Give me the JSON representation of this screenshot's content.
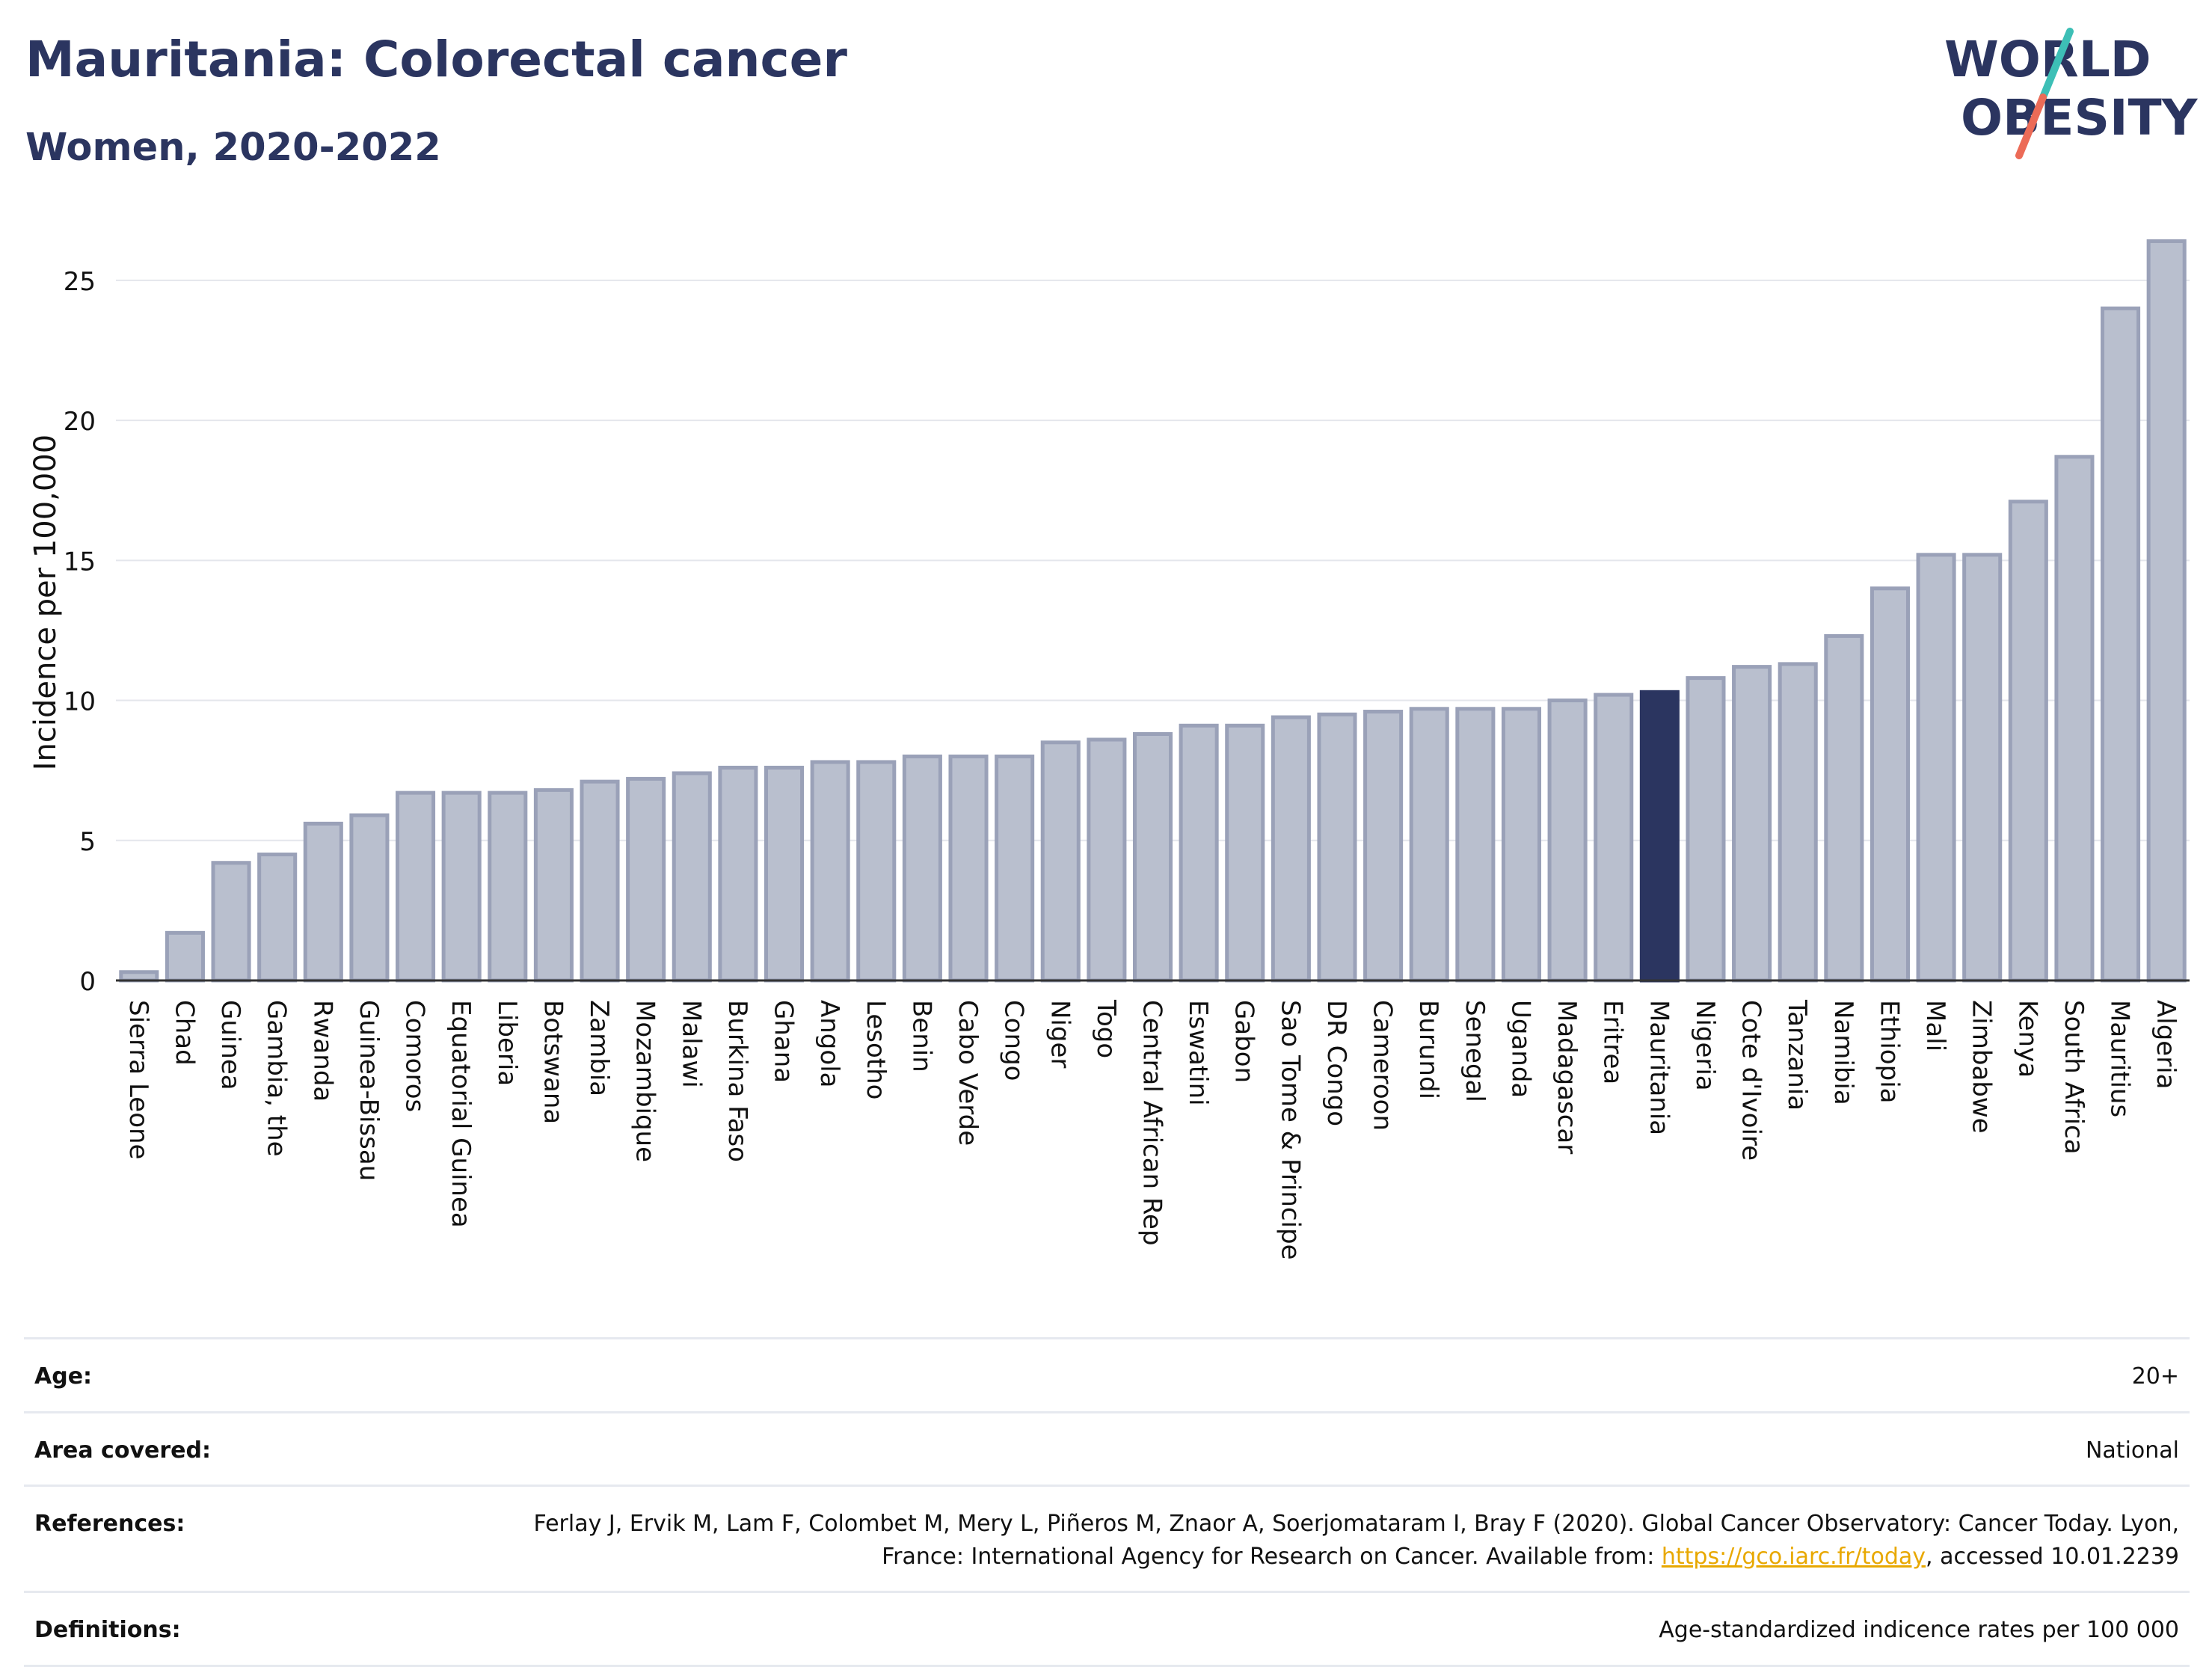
{
  "header": {
    "title": "Mauritania: Colorectal cancer",
    "subtitle": "Women, 2020-2022",
    "logo_line1": "WORLD",
    "logo_line2": "OBESITY"
  },
  "colors": {
    "bar": "#b9bfce",
    "bar_outline": "#9aa1b8",
    "highlight": "#2b3560",
    "title": "#2b3560",
    "link": "#e8a800",
    "logo_teal": "#3dbfb6",
    "logo_red": "#ec6b57"
  },
  "chart_data": {
    "type": "bar",
    "ylabel": "Incidence per 100,000",
    "ylim": [
      0,
      27
    ],
    "yticks": [
      0,
      5,
      10,
      15,
      20,
      25
    ],
    "grid": true,
    "highlight_category": "Mauritania",
    "categories": [
      "Sierra Leone",
      "Chad",
      "Guinea",
      "Gambia, the",
      "Rwanda",
      "Guinea-Bissau",
      "Comoros",
      "Equatorial Guinea",
      "Liberia",
      "Botswana",
      "Zambia",
      "Mozambique",
      "Malawi",
      "Burkina Faso",
      "Ghana",
      "Angola",
      "Lesotho",
      "Benin",
      "Cabo Verde",
      "Congo",
      "Niger",
      "Togo",
      "Central African Rep",
      "Eswatini",
      "Gabon",
      "Sao Tome & Principe",
      "DR Congo",
      "Cameroon",
      "Burundi",
      "Senegal",
      "Uganda",
      "Madagascar",
      "Eritrea",
      "Mauritania",
      "Nigeria",
      "Cote d'Ivoire",
      "Tanzania",
      "Namibia",
      "Ethiopia",
      "Mali",
      "Zimbabwe",
      "Kenya",
      "South Africa",
      "Mauritius",
      "Algeria"
    ],
    "values": [
      0.3,
      1.7,
      4.2,
      4.5,
      5.6,
      5.9,
      6.7,
      6.7,
      6.7,
      6.8,
      7.1,
      7.2,
      7.4,
      7.6,
      7.6,
      7.8,
      7.8,
      8.0,
      8.0,
      8.0,
      8.5,
      8.6,
      8.8,
      9.1,
      9.1,
      9.4,
      9.5,
      9.6,
      9.7,
      9.7,
      9.7,
      10.0,
      10.2,
      10.3,
      10.8,
      11.2,
      11.3,
      12.3,
      14.0,
      15.2,
      15.2,
      17.1,
      18.7,
      24.0,
      26.4
    ]
  },
  "meta": {
    "age_label": "Age:",
    "age_value": "20+",
    "area_label": "Area covered:",
    "area_value": "National",
    "refs_label": "References:",
    "refs_text_before": "Ferlay J, Ervik M, Lam F, Colombet M, Mery L, Piñeros M, Znaor A, Soerjomataram I, Bray F (2020). Global Cancer Observatory: Cancer Today. Lyon, France: International Agency for Research on Cancer. Available from: ",
    "refs_link": "https://gco.iarc.fr/today",
    "refs_text_after": ", accessed 10.01.2239",
    "defs_label": "Definitions:",
    "defs_value": "Age-standardized indicence rates per 100 000"
  }
}
